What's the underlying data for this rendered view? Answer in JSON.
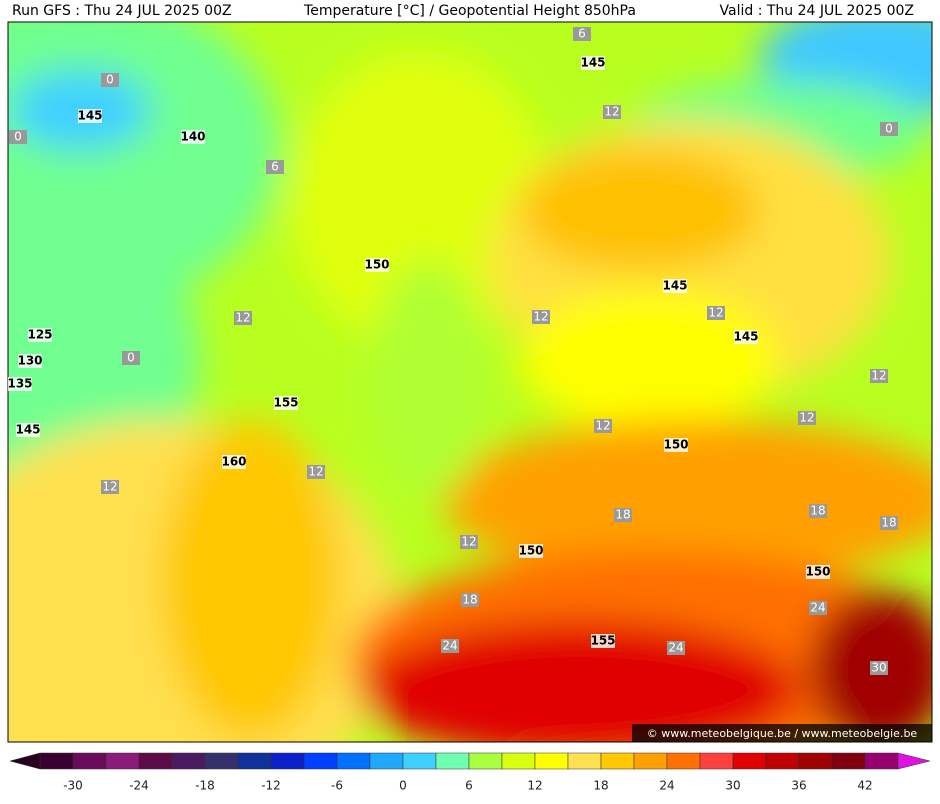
{
  "header": {
    "run": "Run GFS : Thu 24 JUL 2025 00Z",
    "title": "Temperature [°C] / Geopotential Height 850hPa",
    "valid": "Valid : Thu 24 JUL 2025 00Z"
  },
  "height_labels": [
    145,
    145,
    140,
    150,
    145,
    145,
    155,
    160,
    150,
    150,
    150,
    155,
    125,
    130,
    135,
    145
  ],
  "temperature_labels": [
    6,
    0,
    0,
    6,
    12,
    0,
    12,
    0,
    12,
    12,
    12,
    12,
    12,
    12,
    12,
    18,
    18,
    18,
    12,
    18,
    24,
    24,
    24,
    30
  ],
  "watermark": "© www.meteobelgique.be / www.meteobelgie.be",
  "colorbar": {
    "ticks": [
      -30,
      -24,
      -18,
      -12,
      -6,
      0,
      6,
      12,
      18,
      24,
      30,
      36,
      42
    ],
    "colors": [
      "#3a0030",
      "#6a0a5a",
      "#8c1a7c",
      "#5c0a48",
      "#4a1a60",
      "#34306e",
      "#10309a",
      "#0a20c8",
      "#0040ff",
      "#0070ff",
      "#20a8ff",
      "#40d0ff",
      "#70ffb0",
      "#a8ff40",
      "#d8ff10",
      "#ffff00",
      "#ffe050",
      "#ffc800",
      "#ffa000",
      "#ff7000",
      "#ff4040",
      "#e00000",
      "#c00000",
      "#a00000",
      "#800010",
      "#980070"
    ]
  }
}
